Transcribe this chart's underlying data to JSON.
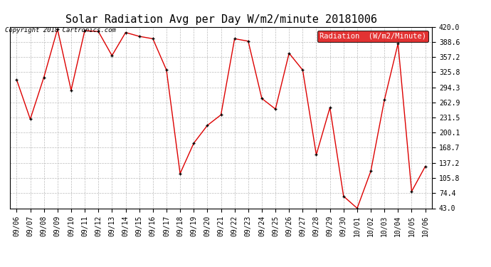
{
  "title": "Solar Radiation Avg per Day W/m2/minute 20181006",
  "copyright": "Copyright 2018 Cartronics.com",
  "legend_label": "Radiation  (W/m2/Minute)",
  "legend_bg": "#dd0000",
  "legend_text_color": "#ffffff",
  "line_color": "#dd0000",
  "marker_color": "#000000",
  "bg_color": "#ffffff",
  "grid_color": "#bbbbbb",
  "dates": [
    "09/06",
    "09/07",
    "09/08",
    "09/09",
    "09/10",
    "09/11",
    "09/12",
    "09/13",
    "09/14",
    "09/15",
    "09/16",
    "09/17",
    "09/18",
    "09/19",
    "09/20",
    "09/21",
    "09/22",
    "09/23",
    "09/24",
    "09/25",
    "09/26",
    "09/27",
    "09/28",
    "09/29",
    "09/30",
    "10/01",
    "10/02",
    "10/03",
    "10/04",
    "10/05",
    "10/06"
  ],
  "values": [
    310,
    228,
    315,
    415,
    288,
    412,
    410,
    360,
    408,
    400,
    395,
    330,
    115,
    178,
    215,
    237,
    395,
    390,
    271,
    249,
    365,
    330,
    154,
    252,
    68,
    43,
    120,
    268,
    385,
    78,
    130
  ],
  "ylim": [
    43.0,
    420.0
  ],
  "yticks": [
    43.0,
    74.4,
    105.8,
    137.2,
    168.7,
    200.1,
    231.5,
    262.9,
    294.3,
    325.8,
    357.2,
    388.6,
    420.0
  ],
  "title_fontsize": 11,
  "copyright_fontsize": 6.5,
  "tick_fontsize": 7,
  "legend_fontsize": 7.5
}
